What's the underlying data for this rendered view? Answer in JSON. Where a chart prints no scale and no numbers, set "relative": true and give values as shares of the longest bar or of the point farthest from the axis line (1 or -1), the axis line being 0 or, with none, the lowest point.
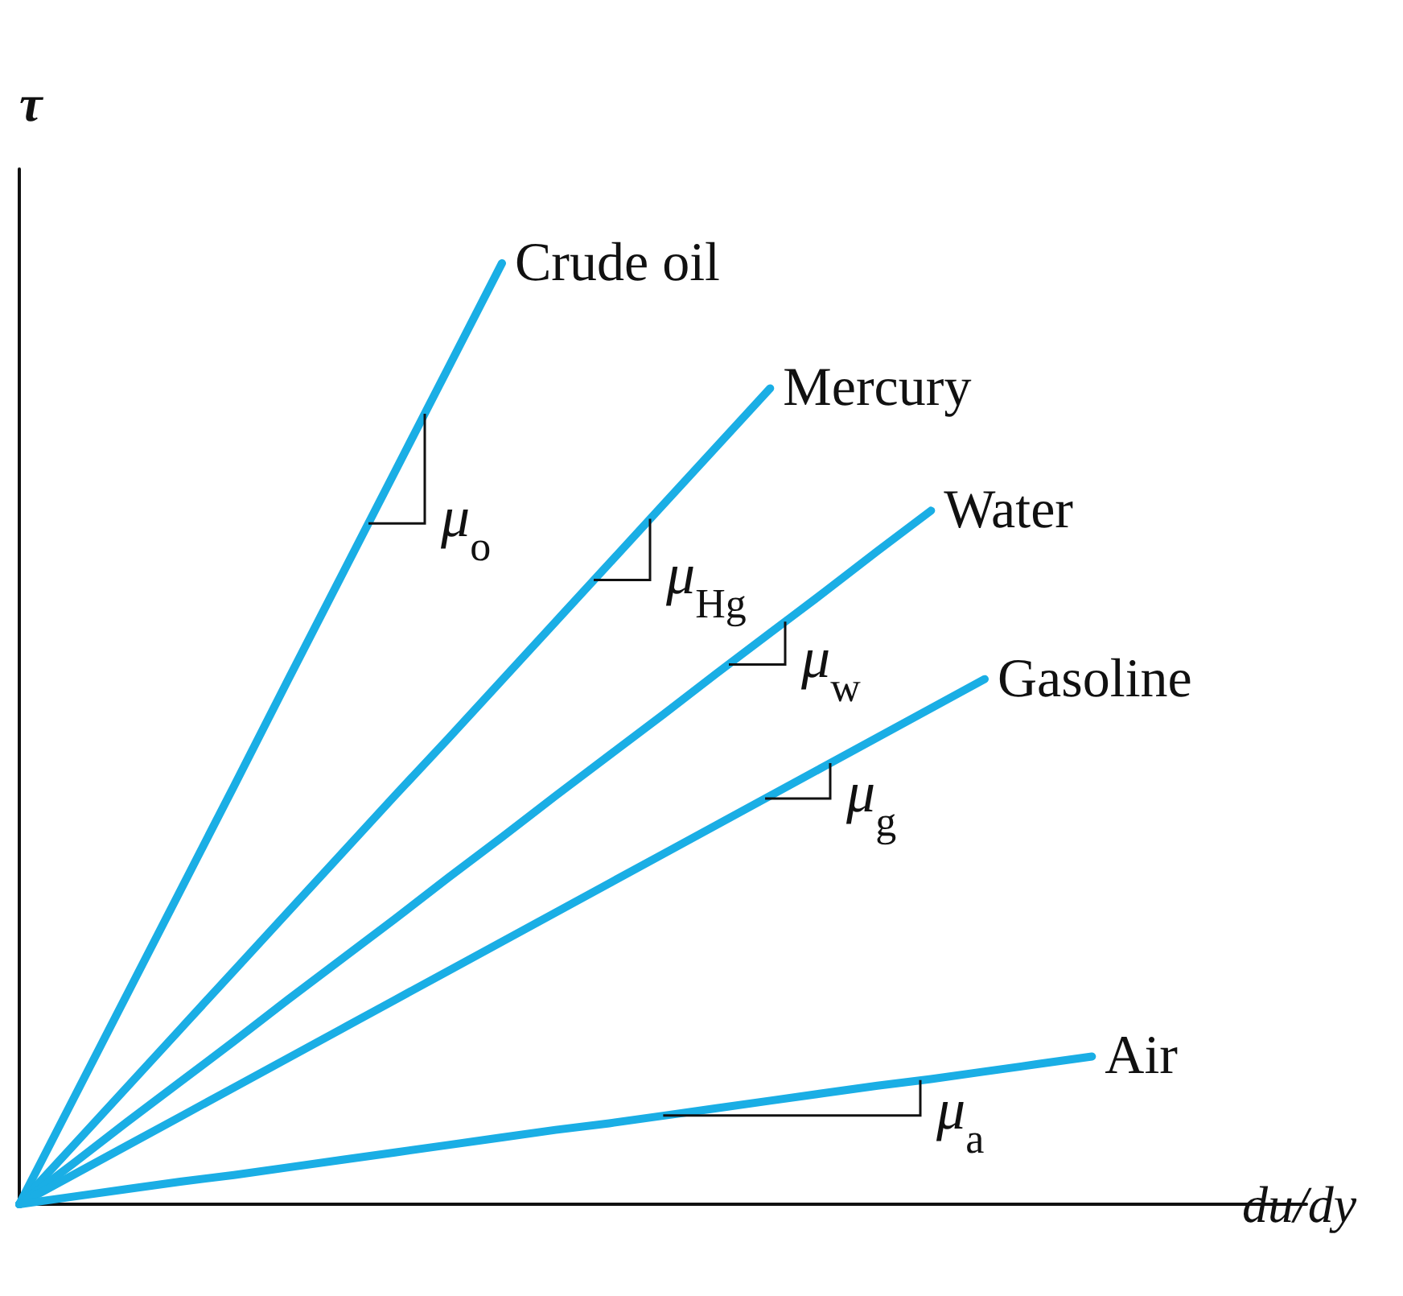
{
  "chart_data": {
    "type": "line",
    "relative": true,
    "xlabel": "du/dy",
    "ylabel": "τ",
    "categories": [
      null,
      null,
      null,
      null,
      null,
      null,
      null,
      null,
      null,
      null,
      null,
      null,
      null,
      null,
      null,
      null,
      null,
      null,
      null,
      null,
      null,
      null,
      null,
      null,
      null
    ],
    "series": [
      {
        "name": "Crude oil",
        "color": "#1aaee5",
        "values": [
          0,
          0.111,
          0.222,
          0.333,
          0.444,
          0.556,
          0.667,
          0.778,
          0.889,
          1,
          null,
          null,
          null,
          null,
          null,
          null,
          null,
          null,
          null,
          null,
          null,
          null,
          null,
          null,
          null
        ]
      },
      {
        "name": "Mercury",
        "color": "#1aaee5",
        "values": [
          0,
          0.062,
          0.124,
          0.186,
          0.248,
          0.31,
          0.372,
          0.434,
          0.495,
          0.557,
          0.619,
          0.681,
          0.743,
          0.805,
          0.867,
          null,
          null,
          null,
          null,
          null,
          null,
          null,
          null,
          null,
          null
        ]
      },
      {
        "name": "Water",
        "color": "#1aaee5",
        "values": [
          0,
          0.043,
          0.087,
          0.13,
          0.173,
          0.217,
          0.26,
          0.303,
          0.347,
          0.39,
          0.434,
          0.477,
          0.52,
          0.564,
          0.607,
          0.65,
          0.694,
          0.737,
          null,
          null,
          null,
          null,
          null,
          null,
          null
        ]
      },
      {
        "name": "Gasoline",
        "color": "#1aaee5",
        "values": [
          0,
          0.031,
          0.062,
          0.093,
          0.124,
          0.155,
          0.186,
          0.217,
          0.248,
          0.279,
          0.31,
          0.341,
          0.372,
          0.403,
          0.434,
          0.465,
          0.496,
          0.527,
          0.558,
          null,
          null,
          null,
          null,
          null,
          null
        ]
      },
      {
        "name": "Air",
        "color": "#1aaee5",
        "values": [
          0,
          0.008,
          0.016,
          0.024,
          0.031,
          0.039,
          0.047,
          0.055,
          0.063,
          0.071,
          0.079,
          0.086,
          0.094,
          0.102,
          0.11,
          0.118,
          0.126,
          0.133,
          0.141,
          0.149,
          0.157,
          null,
          null,
          null,
          null
        ]
      }
    ],
    "annotations": [
      "μ$_{o}$",
      "μ$_{Hg}$",
      "μ$_{w}$",
      "μ$_{g}$",
      "μ$_{a}$"
    ]
  }
}
